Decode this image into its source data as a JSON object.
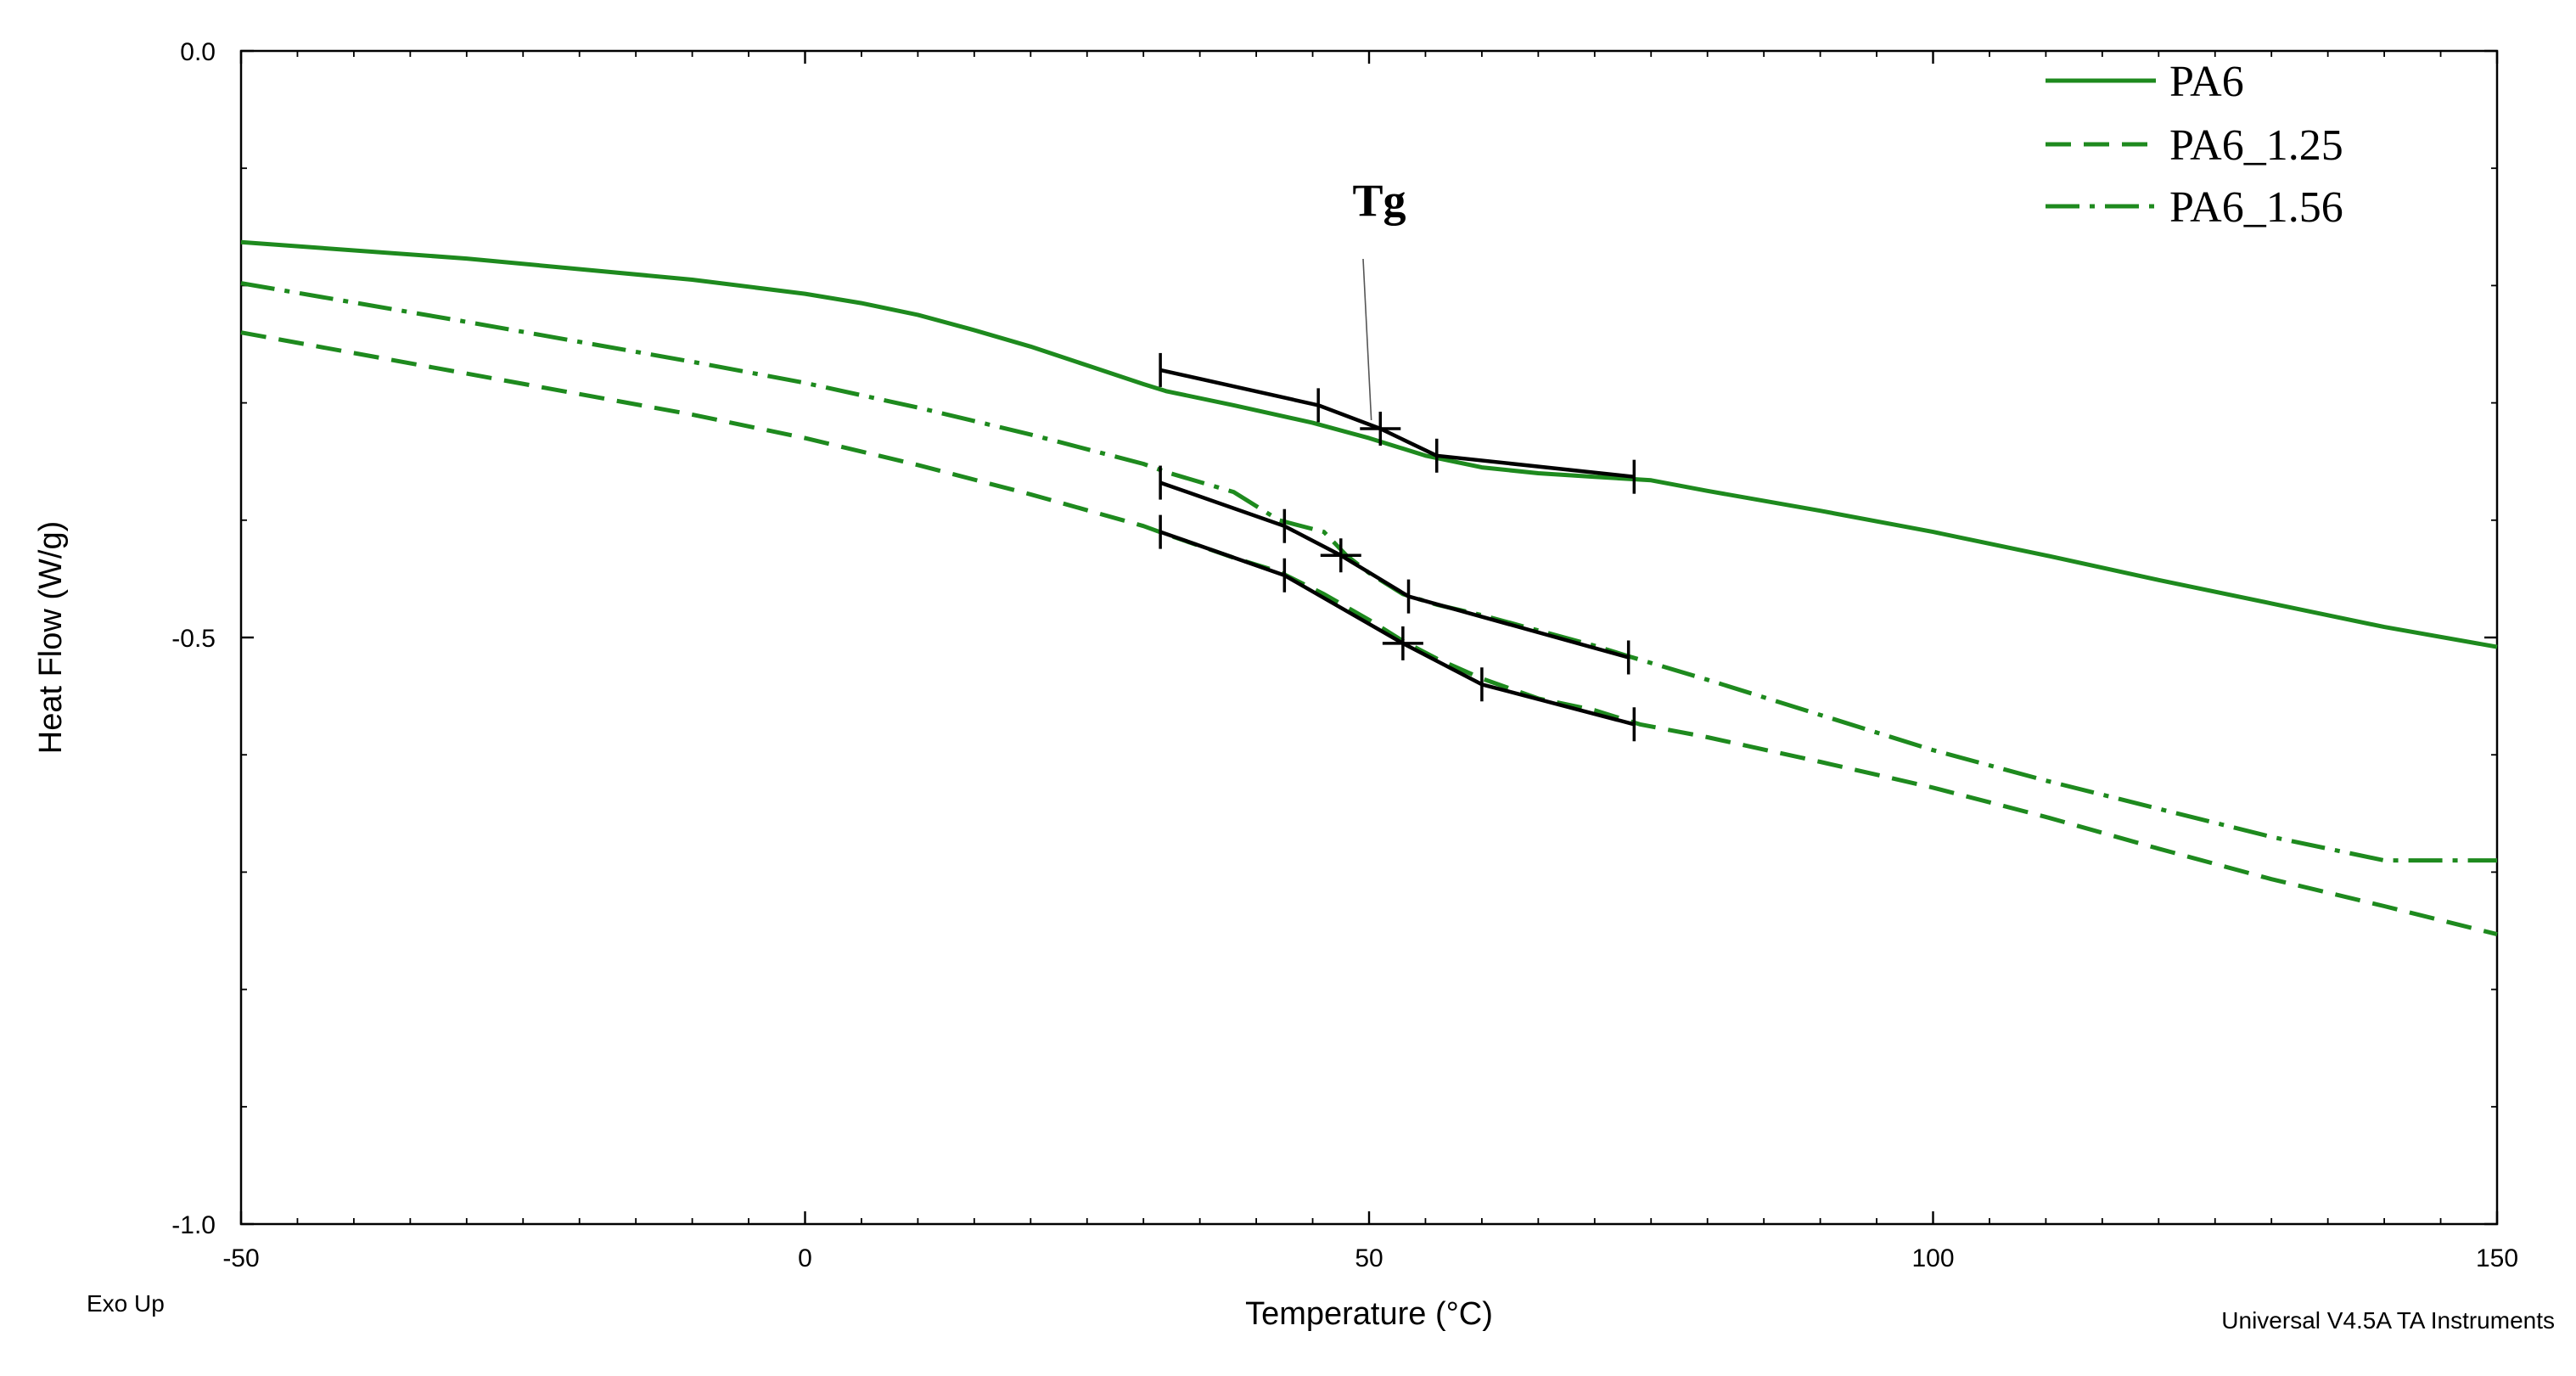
{
  "chart_data": {
    "type": "line",
    "title": "",
    "xlabel": "Temperature (°C)",
    "ylabel": "Heat Flow (W/g)",
    "xlim": [
      -50,
      150
    ],
    "ylim": [
      -1.0,
      0.0
    ],
    "x_ticks": [
      -50,
      0,
      50,
      100,
      150
    ],
    "x_tick_labels": [
      "-50",
      "0",
      "50",
      "100",
      "150"
    ],
    "y_ticks": [
      0.0,
      -0.5,
      -1.0
    ],
    "y_tick_labels": [
      "0.0",
      "-0.5",
      "-1.0"
    ],
    "legend_position": "top-right",
    "colors": {
      "series": "#1e8a1e",
      "analysis": "#000000"
    },
    "series": [
      {
        "name": "PA6",
        "style": "solid",
        "x": [
          -50,
          -30,
          -10,
          0,
          5,
          10,
          15,
          20,
          25,
          30,
          32,
          38,
          45,
          50,
          55,
          60,
          65,
          70,
          75,
          80,
          90,
          100,
          110,
          120,
          130,
          140,
          150
        ],
        "y": [
          -0.163,
          -0.177,
          -0.195,
          -0.207,
          -0.215,
          -0.225,
          -0.238,
          -0.252,
          -0.268,
          -0.284,
          -0.29,
          -0.302,
          -0.317,
          -0.33,
          -0.345,
          -0.355,
          -0.36,
          -0.363,
          -0.366,
          -0.375,
          -0.392,
          -0.41,
          -0.43,
          -0.451,
          -0.471,
          -0.491,
          -0.508
        ]
      },
      {
        "name": "PA6_1.25",
        "style": "dashed",
        "x": [
          -50,
          -30,
          -10,
          0,
          10,
          20,
          30,
          32,
          38,
          42,
          46,
          50,
          53,
          56,
          60,
          65,
          70,
          74,
          80,
          90,
          100,
          110,
          120,
          130,
          140,
          150
        ],
        "y": [
          -0.24,
          -0.275,
          -0.31,
          -0.33,
          -0.353,
          -0.378,
          -0.405,
          -0.412,
          -0.432,
          -0.444,
          -0.463,
          -0.485,
          -0.503,
          -0.518,
          -0.535,
          -0.552,
          -0.562,
          -0.574,
          -0.585,
          -0.606,
          -0.628,
          -0.653,
          -0.68,
          -0.706,
          -0.729,
          -0.753
        ]
      },
      {
        "name": "PA6_1.56",
        "style": "dash-dot",
        "x": [
          -50,
          -30,
          -10,
          0,
          10,
          20,
          30,
          32,
          38,
          42,
          46,
          48,
          50,
          53,
          56,
          60,
          65,
          70,
          73,
          80,
          90,
          100,
          110,
          120,
          130,
          140,
          150
        ],
        "y": [
          -0.198,
          -0.231,
          -0.265,
          -0.283,
          -0.304,
          -0.327,
          -0.352,
          -0.359,
          -0.376,
          -0.4,
          -0.41,
          -0.43,
          -0.445,
          -0.463,
          -0.472,
          -0.481,
          -0.494,
          -0.507,
          -0.516,
          -0.536,
          -0.566,
          -0.596,
          -0.622,
          -0.646,
          -0.67,
          -0.69,
          -0.69
        ]
      }
    ],
    "annotations": {
      "tg_label": "Tg",
      "tg_pointer_to": {
        "x": 50.5,
        "y": -0.322
      },
      "transitions": [
        {
          "series": "PA6",
          "x": [
            31.5,
            45.5,
            51.0,
            56.0,
            73.5
          ],
          "y": [
            -0.272,
            -0.302,
            -0.322,
            -0.345,
            -0.363
          ],
          "midpoint_index": 2
        },
        {
          "series": "PA6_1.56",
          "x": [
            31.5,
            42.5,
            47.5,
            53.5,
            73.0
          ],
          "y": [
            -0.368,
            -0.405,
            -0.43,
            -0.465,
            -0.517
          ],
          "midpoint_index": 2
        },
        {
          "series": "PA6_1.25",
          "x": [
            31.5,
            42.5,
            53.0,
            60.0,
            73.5
          ],
          "y": [
            -0.41,
            -0.447,
            -0.505,
            -0.54,
            -0.574
          ],
          "midpoint_index": 2
        }
      ]
    },
    "corner_left_label": "Exo Up",
    "corner_right_label": "Universal V4.5A TA Instruments"
  }
}
